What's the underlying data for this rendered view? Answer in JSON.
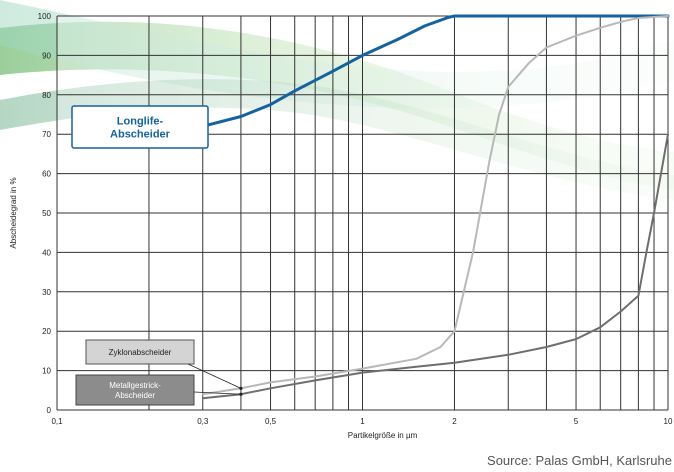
{
  "chart_data": {
    "type": "line",
    "xscale": "log",
    "xlim": [
      0.1,
      10
    ],
    "ylim": [
      0,
      100
    ],
    "grid": true,
    "xlabel": "Partikelgröße in µm",
    "ylabel": "Abscheidegrad in %",
    "xticks": [
      {
        "value": 0.1,
        "label": "0,1"
      },
      {
        "value": 0.3,
        "label": "0,3"
      },
      {
        "value": 0.5,
        "label": "0,5"
      },
      {
        "value": 1,
        "label": "1"
      },
      {
        "value": 2,
        "label": "2"
      },
      {
        "value": 5,
        "label": "5"
      },
      {
        "value": 10,
        "label": "10"
      }
    ],
    "yticks": [
      0,
      10,
      20,
      30,
      40,
      50,
      60,
      70,
      80,
      90,
      100
    ],
    "series": [
      {
        "name": "Longlife-Abscheider",
        "label_lines": [
          "Longlife-",
          "Abscheider"
        ],
        "color": "#1462a0",
        "x": [
          0.3,
          0.4,
          0.5,
          0.6,
          0.8,
          1,
          1.3,
          1.6,
          1.9,
          2,
          3,
          5,
          10
        ],
        "y": [
          72,
          74.5,
          77.5,
          81,
          86,
          90,
          94,
          97.5,
          99.6,
          100,
          100,
          100,
          100
        ]
      },
      {
        "name": "Zyklonabscheider",
        "label_lines": [
          "Zyklonabscheider"
        ],
        "color": "#b8b8b8",
        "x": [
          0.3,
          0.4,
          0.5,
          0.7,
          1,
          1.5,
          1.8,
          2,
          2.3,
          2.6,
          2.8,
          3,
          3.5,
          4,
          5,
          6,
          7,
          8,
          10
        ],
        "y": [
          4,
          5.5,
          7,
          8.5,
          10.5,
          13,
          16,
          20,
          40,
          63,
          75,
          82,
          88,
          92,
          95,
          97,
          98.5,
          99.5,
          100
        ]
      },
      {
        "name": "Metallgestrick-Abscheider",
        "label_lines": [
          "Metallgestrick-",
          "Abscheider"
        ],
        "color": "#6e6e6e",
        "x": [
          0.3,
          0.4,
          0.5,
          0.7,
          1,
          1.5,
          2,
          3,
          4,
          5,
          6,
          7,
          8,
          8.5,
          9,
          10
        ],
        "y": [
          3,
          4,
          5.5,
          7.5,
          9.5,
          11,
          12,
          14,
          16,
          18,
          21,
          25,
          29,
          40,
          50,
          70
        ]
      }
    ]
  },
  "source": "Source: Palas GmbH, Karlsruhe"
}
